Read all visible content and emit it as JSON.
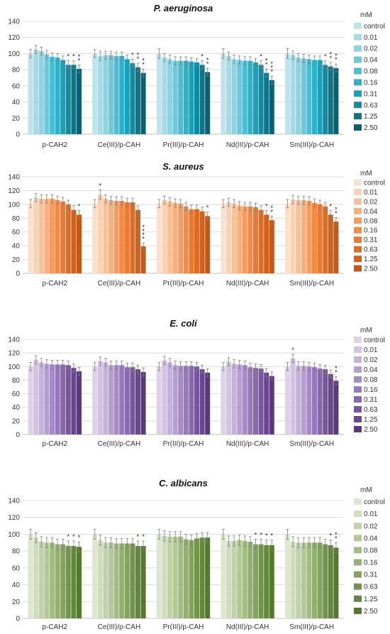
{
  "chart_data": [
    {
      "type": "bar",
      "title": "P. aeruginosa",
      "ylim": [
        0,
        140
      ],
      "yticks": [
        0,
        20,
        40,
        60,
        80,
        100,
        120,
        140
      ],
      "categories": [
        "p-CAH2",
        "Ce(III)/p-CAH",
        "Pr(III)/p-CAH",
        "Nd(III)/p-CAH",
        "Sm(III)/p-CAH"
      ],
      "legend_title": "mM",
      "legend_position": "right",
      "grid": true,
      "colors": [
        "#bfe3ea",
        "#a6dbe6",
        "#8fd3e2",
        "#6fc7da",
        "#4fbdd1",
        "#2fb1c7",
        "#1aa0b8",
        "#138aa0",
        "#0f7488",
        "#0a6070"
      ],
      "series": [
        {
          "name": "control",
          "values": [
            100,
            100,
            100,
            100,
            100
          ],
          "errors": [
            5,
            5,
            6,
            6,
            6
          ],
          "stars": [
            "",
            "",
            "",
            "",
            ""
          ]
        },
        {
          "name": "0.01",
          "values": [
            105,
            97,
            95,
            97,
            98
          ],
          "errors": [
            5,
            6,
            5,
            5,
            5
          ],
          "stars": [
            "",
            "",
            "",
            "",
            ""
          ]
        },
        {
          "name": "0.02",
          "values": [
            103,
            98,
            93,
            93,
            95
          ],
          "errors": [
            5,
            5,
            5,
            5,
            5
          ],
          "stars": [
            "",
            "",
            "",
            "",
            ""
          ]
        },
        {
          "name": "0.04",
          "values": [
            99,
            98,
            91,
            92,
            94
          ],
          "errors": [
            5,
            5,
            5,
            5,
            5
          ],
          "stars": [
            "",
            "",
            "",
            "",
            ""
          ]
        },
        {
          "name": "0.08",
          "values": [
            96,
            97,
            91,
            91,
            93
          ],
          "errors": [
            5,
            5,
            5,
            5,
            5
          ],
          "stars": [
            "",
            "",
            "",
            "",
            ""
          ]
        },
        {
          "name": "0.16",
          "values": [
            95,
            97,
            91,
            91,
            92
          ],
          "errors": [
            5,
            5,
            5,
            5,
            5
          ],
          "stars": [
            "",
            "",
            "",
            "",
            ""
          ]
        },
        {
          "name": "0.31",
          "values": [
            92,
            93,
            90,
            89,
            92
          ],
          "errors": [
            5,
            5,
            5,
            5,
            5
          ],
          "stars": [
            "",
            "",
            "",
            "",
            ""
          ]
        },
        {
          "name": "0.63",
          "values": [
            86,
            88,
            89,
            86,
            86
          ],
          "errors": [
            5,
            5,
            5,
            5,
            5
          ],
          "stars": [
            "*",
            "*",
            "",
            "*",
            "*"
          ]
        },
        {
          "name": "1.25",
          "values": [
            86,
            83,
            86,
            76,
            84
          ],
          "errors": [
            5,
            5,
            5,
            5,
            5
          ],
          "stars": [
            "*",
            "**",
            "*",
            "**",
            "**"
          ]
        },
        {
          "name": "2.50",
          "values": [
            81,
            76,
            77,
            67,
            82
          ],
          "errors": [
            5,
            5,
            5,
            5,
            5
          ],
          "stars": [
            "**",
            "**",
            "**",
            "***",
            "**"
          ]
        }
      ]
    },
    {
      "type": "bar",
      "title": "S. aureus",
      "ylim": [
        0,
        140
      ],
      "yticks": [
        0,
        20,
        40,
        60,
        80,
        100,
        120,
        140
      ],
      "categories": [
        "p-CAH2",
        "Ce(III)/p-CAH",
        "Pr(III)/p-CAH",
        "Nd(III)/p-CAH",
        "Sm(III)/p-CAH"
      ],
      "legend_title": "mM",
      "legend_position": "right",
      "grid": true,
      "colors": [
        "#fbe0cc",
        "#fad1b3",
        "#f8c299",
        "#f6b07e",
        "#f39d62",
        "#f08b48",
        "#e97a33",
        "#dd6d25",
        "#cf621d",
        "#c15a18"
      ],
      "series": [
        {
          "name": "control",
          "values": [
            101,
            101,
            101,
            101,
            101
          ],
          "errors": [
            6,
            6,
            6,
            6,
            6
          ],
          "stars": [
            "",
            "",
            "",
            "",
            ""
          ]
        },
        {
          "name": "0.01",
          "values": [
            110,
            114,
            106,
            103,
            107
          ],
          "errors": [
            6,
            7,
            6,
            6,
            6
          ],
          "stars": [
            "",
            "*",
            "",
            "",
            ""
          ]
        },
        {
          "name": "0.02",
          "values": [
            108,
            108,
            104,
            101,
            106
          ],
          "errors": [
            6,
            6,
            6,
            6,
            6
          ],
          "stars": [
            "",
            "",
            "",
            "",
            ""
          ]
        },
        {
          "name": "0.04",
          "values": [
            108,
            106,
            102,
            98,
            106
          ],
          "errors": [
            6,
            6,
            6,
            6,
            6
          ],
          "stars": [
            "",
            "",
            "",
            "",
            ""
          ]
        },
        {
          "name": "0.08",
          "values": [
            108,
            105,
            101,
            97,
            105
          ],
          "errors": [
            6,
            6,
            6,
            6,
            6
          ],
          "stars": [
            "",
            "",
            "",
            "",
            ""
          ]
        },
        {
          "name": "0.16",
          "values": [
            106,
            105,
            97,
            97,
            102
          ],
          "errors": [
            6,
            6,
            6,
            6,
            6
          ],
          "stars": [
            "",
            "",
            "",
            "",
            ""
          ]
        },
        {
          "name": "0.31",
          "values": [
            104,
            103,
            93,
            96,
            100
          ],
          "errors": [
            6,
            6,
            6,
            6,
            6
          ],
          "stars": [
            "",
            "",
            "",
            "",
            ""
          ]
        },
        {
          "name": "0.63",
          "values": [
            100,
            103,
            93,
            92,
            97
          ],
          "errors": [
            6,
            6,
            6,
            6,
            6
          ],
          "stars": [
            "",
            "",
            "",
            "",
            ""
          ]
        },
        {
          "name": "1.25",
          "values": [
            92,
            92,
            90,
            85,
            85
          ],
          "errors": [
            6,
            6,
            6,
            6,
            6
          ],
          "stars": [
            "",
            "",
            "",
            "*",
            "*"
          ]
        },
        {
          "name": "2.50",
          "values": [
            85,
            39,
            83,
            77,
            75
          ],
          "errors": [
            6,
            5,
            6,
            6,
            6
          ],
          "stars": [
            "*",
            "****",
            "*",
            "**",
            "**"
          ]
        }
      ]
    },
    {
      "type": "bar",
      "title": "E. coli",
      "ylim": [
        0,
        140
      ],
      "yticks": [
        0,
        20,
        40,
        60,
        80,
        100,
        120,
        140
      ],
      "categories": [
        "p-CAH2",
        "Ce(III)/p-CAH",
        "Pr(III)/p-CAH",
        "Nd(III)/p-CAH",
        "Sm(III)/p-CAH"
      ],
      "legend_title": "mM",
      "legend_position": "right",
      "grid": true,
      "colors": [
        "#ddd3e8",
        "#d1c3e1",
        "#c4b2d8",
        "#b69fcf",
        "#a68bc4",
        "#9778b8",
        "#8867ab",
        "#78569d",
        "#68478d",
        "#583a7c"
      ],
      "series": [
        {
          "name": "control",
          "values": [
            100,
            100,
            100,
            100,
            100
          ],
          "errors": [
            6,
            6,
            6,
            6,
            6
          ],
          "stars": [
            "",
            "",
            "",
            "",
            ""
          ]
        },
        {
          "name": "0.01",
          "values": [
            110,
            108,
            109,
            107,
            112
          ],
          "errors": [
            6,
            6,
            6,
            6,
            6
          ],
          "stars": [
            "",
            "",
            "",
            "",
            "*"
          ]
        },
        {
          "name": "0.02",
          "values": [
            106,
            106,
            106,
            104,
            101
          ],
          "errors": [
            6,
            6,
            6,
            6,
            6
          ],
          "stars": [
            "",
            "",
            "",
            "",
            ""
          ]
        },
        {
          "name": "0.04",
          "values": [
            104,
            102,
            102,
            103,
            101
          ],
          "errors": [
            6,
            6,
            6,
            6,
            6
          ],
          "stars": [
            "",
            "",
            "",
            "",
            ""
          ]
        },
        {
          "name": "0.08",
          "values": [
            103,
            102,
            101,
            102,
            100
          ],
          "errors": [
            6,
            6,
            6,
            6,
            6
          ],
          "stars": [
            "",
            "",
            "",
            "",
            ""
          ]
        },
        {
          "name": "0.16",
          "values": [
            103,
            102,
            101,
            99,
            99
          ],
          "errors": [
            6,
            6,
            6,
            6,
            6
          ],
          "stars": [
            "",
            "",
            "",
            "",
            ""
          ]
        },
        {
          "name": "0.31",
          "values": [
            103,
            99,
            101,
            98,
            97
          ],
          "errors": [
            6,
            6,
            6,
            6,
            6
          ],
          "stars": [
            "",
            "",
            "",
            "",
            ""
          ]
        },
        {
          "name": "0.63",
          "values": [
            102,
            99,
            100,
            97,
            96
          ],
          "errors": [
            6,
            6,
            6,
            6,
            6
          ],
          "stars": [
            "",
            "",
            "",
            "",
            ""
          ]
        },
        {
          "name": "1.25",
          "values": [
            98,
            96,
            96,
            91,
            89
          ],
          "errors": [
            6,
            6,
            6,
            6,
            6
          ],
          "stars": [
            "",
            "",
            "",
            "",
            ""
          ]
        },
        {
          "name": "2.50",
          "values": [
            93,
            92,
            91,
            86,
            79
          ],
          "errors": [
            6,
            6,
            6,
            6,
            6
          ],
          "stars": [
            "",
            "",
            "",
            "",
            "**"
          ]
        }
      ]
    },
    {
      "type": "bar",
      "title": "C. albicans",
      "ylim": [
        0,
        140
      ],
      "yticks": [
        0,
        20,
        40,
        60,
        80,
        100,
        120,
        140
      ],
      "categories": [
        "p-CAH2",
        "Ce(III)/p-CAH",
        "Pr(III)/p-CAH",
        "Nd(III)/p-CAH",
        "Sm(III)/p-CAH"
      ],
      "legend_title": "mM",
      "legend_position": "right",
      "grid": true,
      "colors": [
        "#dde7cf",
        "#cfdcbd",
        "#c1d2aa",
        "#b3c797",
        "#a4bc84",
        "#94b070",
        "#84a35d",
        "#73954b",
        "#63873b",
        "#54792d"
      ],
      "series": [
        {
          "name": "control",
          "values": [
            100,
            100,
            100,
            100,
            100
          ],
          "errors": [
            6,
            6,
            6,
            6,
            6
          ],
          "stars": [
            "",
            "",
            "",
            "",
            ""
          ]
        },
        {
          "name": "0.01",
          "values": [
            96,
            93,
            98,
            92,
            91
          ],
          "errors": [
            6,
            6,
            6,
            6,
            6
          ],
          "stars": [
            "",
            "",
            "",
            "",
            ""
          ]
        },
        {
          "name": "0.02",
          "values": [
            91,
            90,
            97,
            92,
            90
          ],
          "errors": [
            6,
            6,
            6,
            6,
            6
          ],
          "stars": [
            "",
            "",
            "",
            "",
            ""
          ]
        },
        {
          "name": "0.04",
          "values": [
            90,
            90,
            97,
            93,
            90
          ],
          "errors": [
            6,
            6,
            6,
            6,
            6
          ],
          "stars": [
            "",
            "",
            "",
            "",
            ""
          ]
        },
        {
          "name": "0.08",
          "values": [
            90,
            89,
            97,
            92,
            90
          ],
          "errors": [
            6,
            6,
            6,
            6,
            6
          ],
          "stars": [
            "",
            "",
            "",
            "",
            ""
          ]
        },
        {
          "name": "0.16",
          "values": [
            88,
            89,
            94,
            91,
            90
          ],
          "errors": [
            6,
            6,
            6,
            6,
            6
          ],
          "stars": [
            "",
            "",
            "",
            "",
            ""
          ]
        },
        {
          "name": "0.31",
          "values": [
            88,
            89,
            93,
            88,
            90
          ],
          "errors": [
            6,
            6,
            6,
            6,
            6
          ],
          "stars": [
            "",
            "",
            "",
            "*",
            ""
          ]
        },
        {
          "name": "0.63",
          "values": [
            86,
            89,
            95,
            88,
            88
          ],
          "errors": [
            6,
            6,
            6,
            6,
            6
          ],
          "stars": [
            "*",
            "",
            "",
            "*",
            ""
          ]
        },
        {
          "name": "1.25",
          "values": [
            86,
            86,
            96,
            87,
            87
          ],
          "errors": [
            6,
            6,
            6,
            6,
            6
          ],
          "stars": [
            "*",
            "*",
            "",
            "*",
            "*"
          ]
        },
        {
          "name": "2.50",
          "values": [
            85,
            86,
            96,
            87,
            84
          ],
          "errors": [
            6,
            6,
            6,
            6,
            6
          ],
          "stars": [
            "*",
            "*",
            "",
            "*",
            "**"
          ]
        }
      ]
    }
  ]
}
